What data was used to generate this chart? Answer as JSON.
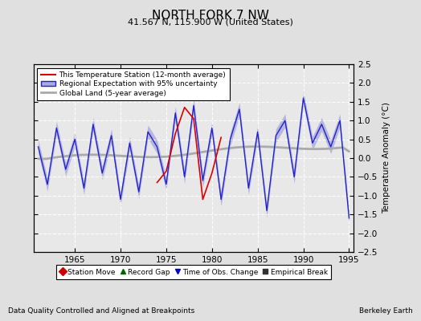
{
  "title": "NORTH FORK 7 NW",
  "subtitle": "41.567 N, 115.900 W (United States)",
  "ylabel": "Temperature Anomaly (°C)",
  "xlabel_note": "Data Quality Controlled and Aligned at Breakpoints",
  "xlabel_right": "Berkeley Earth",
  "ylim": [
    -2.5,
    2.5
  ],
  "xlim": [
    1960.5,
    1995.5
  ],
  "xticks": [
    1965,
    1970,
    1975,
    1980,
    1985,
    1990,
    1995
  ],
  "yticks": [
    -2,
    -1.5,
    -1,
    -0.5,
    0,
    0.5,
    1,
    1.5,
    2
  ],
  "yticks_right": [
    -2.5,
    -2,
    -1.5,
    -1,
    -0.5,
    0,
    0.5,
    1,
    1.5,
    2,
    2.5
  ],
  "bg_color": "#e0e0e0",
  "plot_bg_color": "#e8e8e8",
  "regional_color": "#2222cc",
  "regional_fill_color": "#aaaadd",
  "station_color": "#dd0000",
  "global_color": "#aaaaaa",
  "legend_labels": [
    "This Temperature Station (12-month average)",
    "Regional Expectation with 95% uncertainty",
    "Global Land (5-year average)"
  ],
  "bottom_legend": [
    {
      "marker": "D",
      "color": "#cc0000",
      "label": "Station Move"
    },
    {
      "marker": "^",
      "color": "#006600",
      "label": "Record Gap"
    },
    {
      "marker": "v",
      "color": "#0000cc",
      "label": "Time of Obs. Change"
    },
    {
      "marker": "s",
      "color": "#333333",
      "label": "Empirical Break"
    }
  ]
}
